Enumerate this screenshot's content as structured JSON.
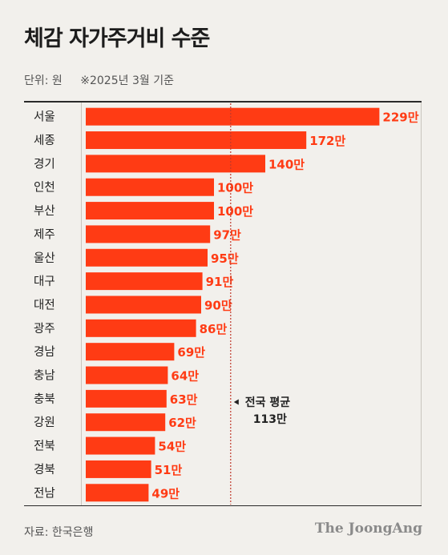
{
  "title": "체감 자가주거비 수준",
  "unit": "단위: 원",
  "note": "※2025년 3월 기준",
  "source": "자료: 한국은행",
  "logo": "The JoongAng",
  "colors": {
    "bar": "#ff3b14",
    "bar_label": "#ff3b14",
    "avg_line": "#c0392b",
    "background": "#f2f0ec"
  },
  "chart_data": {
    "type": "bar",
    "orientation": "horizontal",
    "categories": [
      "서울",
      "세종",
      "경기",
      "인천",
      "부산",
      "제주",
      "울산",
      "대구",
      "대전",
      "광주",
      "경남",
      "충남",
      "충북",
      "강원",
      "전북",
      "경북",
      "전남"
    ],
    "values": [
      229,
      172,
      140,
      100,
      100,
      97,
      95,
      91,
      90,
      86,
      69,
      64,
      63,
      62,
      54,
      51,
      49
    ],
    "value_labels": [
      "229만",
      "172만",
      "140만",
      "100만",
      "100만",
      "97만",
      "95만",
      "91만",
      "90만",
      "86만",
      "69만",
      "64만",
      "63만",
      "62만",
      "54만",
      "51만",
      "49만"
    ],
    "reference_line": {
      "value": 113,
      "label_line1": "전국 평균",
      "label_line2": "113만"
    }
  }
}
